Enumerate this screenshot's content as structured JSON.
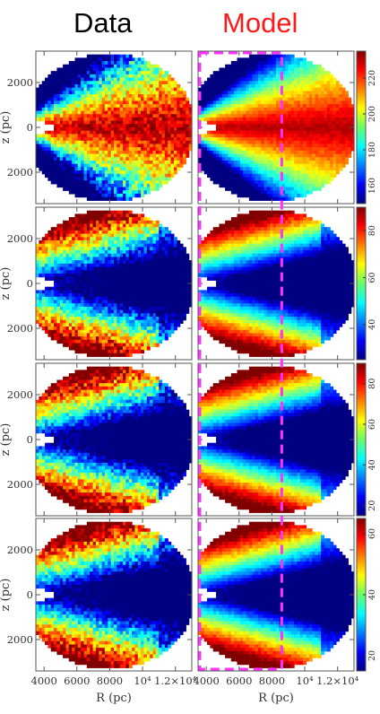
{
  "headers": {
    "data": "Data",
    "model": "Model"
  },
  "colors": {
    "model_header": "#ff1a1a",
    "highlight_box": "#ff33ff"
  },
  "colorscale": "jet (blue to red)",
  "chart_data": {
    "type": "heatmap",
    "layout": "4 rows x 2 columns of R-z maps with one colorbar per row",
    "columns": [
      "Data",
      "Model"
    ],
    "xlabel": "R (pc)",
    "ylabel": "z (pc)",
    "x_ticks": [
      "4000",
      "6000",
      "8000",
      "10⁴",
      "1.2×10⁴"
    ],
    "x_tick_values": [
      4000,
      6000,
      8000,
      10000,
      12000
    ],
    "y_ticks": [
      "2000",
      "0",
      "2000"
    ],
    "y_tick_values": [
      2000,
      0,
      -2000
    ],
    "xlim": [
      3500,
      13000
    ],
    "ylim": [
      -3400,
      3400
    ],
    "highlight": {
      "style": "dashed magenta box on Model column",
      "r_max": 8600
    },
    "panels": [
      {
        "row": 1,
        "colorbar_ticks": [
          "160",
          "180",
          "200",
          "220"
        ],
        "colorbar_range": [
          150,
          235
        ],
        "pattern": "plane-high"
      },
      {
        "row": 2,
        "colorbar_ticks": [
          "40",
          "60",
          "80"
        ],
        "colorbar_range": [
          25,
          90
        ],
        "pattern": "plane-low"
      },
      {
        "row": 3,
        "colorbar_ticks": [
          "20",
          "40",
          "60",
          "80"
        ],
        "colorbar_range": [
          15,
          90
        ],
        "pattern": "plane-low"
      },
      {
        "row": 4,
        "colorbar_ticks": [
          "20",
          "40",
          "60"
        ],
        "colorbar_range": [
          15,
          65
        ],
        "pattern": "plane-low"
      }
    ]
  }
}
